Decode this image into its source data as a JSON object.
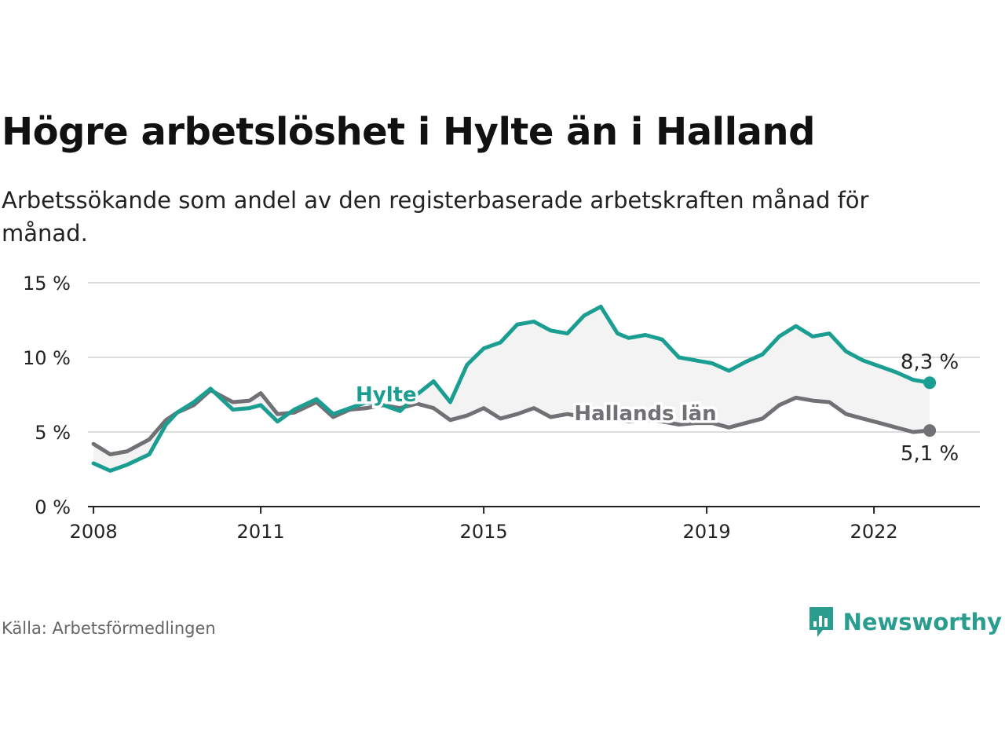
{
  "header": {
    "title": "Högre arbetslöshet i Hylte än i Halland",
    "subtitle": "Arbetssökande som andel av den registerbaserade arbetskraften månad för månad."
  },
  "footer": {
    "source": "Källa: Arbetsförmedlingen",
    "brand": "Newsworthy"
  },
  "colors": {
    "hylte": "#1a9e91",
    "halland": "#717175",
    "fill": "#f3f3f3",
    "grid": "#dddddd",
    "axis": "#222222",
    "brand": "#2a9d8f"
  },
  "chart_data": {
    "type": "line",
    "title": "Högre arbetslöshet i Hylte än i Halland",
    "xlabel": "",
    "ylabel": "",
    "xlim": [
      2007.9,
      2023.9
    ],
    "ylim": [
      0,
      15
    ],
    "yticks": [
      0,
      5,
      10,
      15
    ],
    "ytick_labels": [
      "0 %",
      "5 %",
      "10 %",
      "15 %"
    ],
    "xticks": [
      2008,
      2011,
      2015,
      2019,
      2022
    ],
    "xtick_labels": [
      "2008",
      "2011",
      "2015",
      "2019",
      "2022"
    ],
    "grid": true,
    "series": [
      {
        "name": "Hylte",
        "label": "Hylte",
        "end_label": "8,3 %",
        "x": [
          2008.0,
          2008.3,
          2008.6,
          2009.0,
          2009.3,
          2009.5,
          2009.8,
          2010.1,
          2010.5,
          2010.8,
          2011.0,
          2011.3,
          2011.6,
          2012.0,
          2012.3,
          2012.6,
          2012.9,
          2013.2,
          2013.5,
          2013.8,
          2014.1,
          2014.4,
          2014.7,
          2015.0,
          2015.3,
          2015.6,
          2015.9,
          2016.2,
          2016.5,
          2016.8,
          2017.1,
          2017.4,
          2017.6,
          2017.9,
          2018.2,
          2018.5,
          2018.8,
          2019.1,
          2019.4,
          2019.7,
          2020.0,
          2020.3,
          2020.6,
          2020.9,
          2021.2,
          2021.5,
          2021.8,
          2022.1,
          2022.4,
          2022.7,
          2023.0
        ],
        "values": [
          2.9,
          2.4,
          2.8,
          3.5,
          5.5,
          6.3,
          7.0,
          7.9,
          6.5,
          6.6,
          6.8,
          5.7,
          6.5,
          7.2,
          6.2,
          6.6,
          7.0,
          6.8,
          6.4,
          7.5,
          8.4,
          7.0,
          9.5,
          10.6,
          11.0,
          12.2,
          12.4,
          11.8,
          11.6,
          12.8,
          13.4,
          11.6,
          11.3,
          11.5,
          11.2,
          10.0,
          9.8,
          9.6,
          9.1,
          9.7,
          10.2,
          11.4,
          12.1,
          11.4,
          11.6,
          10.4,
          9.8,
          9.4,
          9.0,
          8.5,
          8.3
        ]
      },
      {
        "name": "Hallands län",
        "label": "Hallands län",
        "end_label": "5,1 %",
        "x": [
          2008.0,
          2008.3,
          2008.6,
          2009.0,
          2009.3,
          2009.5,
          2009.8,
          2010.1,
          2010.5,
          2010.8,
          2011.0,
          2011.3,
          2011.6,
          2012.0,
          2012.3,
          2012.6,
          2012.9,
          2013.2,
          2013.5,
          2013.8,
          2014.1,
          2014.4,
          2014.7,
          2015.0,
          2015.3,
          2015.6,
          2015.9,
          2016.2,
          2016.5,
          2016.8,
          2017.1,
          2017.4,
          2017.6,
          2017.9,
          2018.2,
          2018.5,
          2018.8,
          2019.1,
          2019.4,
          2019.7,
          2020.0,
          2020.3,
          2020.6,
          2020.9,
          2021.2,
          2021.5,
          2021.8,
          2022.1,
          2022.4,
          2022.7,
          2023.0
        ],
        "values": [
          4.2,
          3.5,
          3.7,
          4.5,
          5.8,
          6.3,
          6.8,
          7.8,
          7.0,
          7.1,
          7.6,
          6.2,
          6.3,
          7.0,
          6.0,
          6.5,
          6.6,
          6.8,
          6.6,
          6.9,
          6.6,
          5.8,
          6.1,
          6.6,
          5.9,
          6.2,
          6.6,
          6.0,
          6.2,
          6.0,
          6.1,
          5.8,
          5.7,
          5.8,
          5.7,
          5.5,
          5.6,
          5.6,
          5.3,
          5.6,
          5.9,
          6.8,
          7.3,
          7.1,
          7.0,
          6.2,
          5.9,
          5.6,
          5.3,
          5.0,
          5.1
        ]
      }
    ]
  }
}
